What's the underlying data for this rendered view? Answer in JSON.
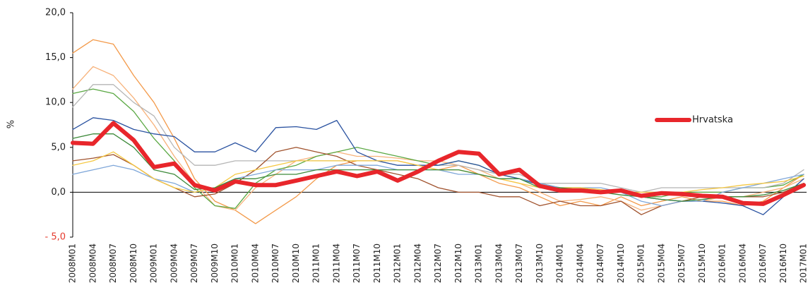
{
  "chart_data": {
    "type": "line",
    "y_label": "%",
    "categories": [
      "2008M01",
      "2008M04",
      "2008M07",
      "2008M10",
      "2009M01",
      "2009M04",
      "2009M07",
      "2009M10",
      "2010M01",
      "2010M04",
      "2010M07",
      "2010M10",
      "2011M01",
      "2011M04",
      "2011M07",
      "2011M10",
      "2012M01",
      "2012M04",
      "2012M07",
      "2012M10",
      "2013M01",
      "2013M04",
      "2013M07",
      "2013M10",
      "2014M01",
      "2014M04",
      "2014M07",
      "2014M10",
      "2015M01",
      "2015M04",
      "2015M07",
      "2015M10",
      "2016M01",
      "2016M04",
      "2016M07",
      "2016M10",
      "2017M01"
    ],
    "ylim": [
      -5,
      20
    ],
    "yticks": [
      {
        "value": -5,
        "label": "- 5,0"
      },
      {
        "value": 0,
        "label": "0,0"
      },
      {
        "value": 5,
        "label": "5,0"
      },
      {
        "value": 10,
        "label": "10,0"
      },
      {
        "value": 15,
        "label": "15,0"
      },
      {
        "value": 20,
        "label": "20,0"
      }
    ],
    "negative_tick_color": "#e53a2d",
    "legend_position": "right",
    "series": [
      {
        "color": "#f39a4a",
        "values": [
          15.5,
          17.0,
          16.5,
          13.0,
          10.0,
          6.0,
          1.5,
          -1.0,
          -2.0,
          -3.5,
          -2.0,
          -0.5,
          1.5,
          3.0,
          3.5,
          3.5,
          3.5,
          3.0,
          2.5,
          3.0,
          2.0,
          1.0,
          0.5,
          -0.5,
          -1.5,
          -1.0,
          -1.5,
          -0.5,
          -1.5,
          -1.0,
          -0.5,
          -1.0,
          -1.0,
          -1.5,
          -1.0,
          0.5,
          2.0
        ]
      },
      {
        "color": "#f7b27a",
        "values": [
          11.5,
          14.0,
          13.0,
          10.5,
          7.5,
          4.0,
          1.0,
          -1.5,
          -2.0,
          0.5,
          2.0,
          3.5,
          4.0,
          4.5,
          4.0,
          4.0,
          3.8,
          3.5,
          3.5,
          3.0,
          2.5,
          1.5,
          1.0,
          0.0,
          -1.0,
          -0.8,
          -0.5,
          -1.0,
          -2.0,
          -1.5,
          -1.0,
          -1.0,
          -0.5,
          -0.5,
          0.0,
          0.5,
          1.5
        ]
      },
      {
        "color": "#5aa843",
        "values": [
          11.0,
          11.5,
          11.0,
          9.0,
          6.0,
          3.5,
          0.5,
          -1.5,
          -1.8,
          1.0,
          2.5,
          3.0,
          4.0,
          4.5,
          5.0,
          4.5,
          4.0,
          3.5,
          3.0,
          3.5,
          3.0,
          2.0,
          1.5,
          1.0,
          0.5,
          0.5,
          0.0,
          0.0,
          -0.5,
          -0.5,
          0.0,
          0.0,
          0.0,
          0.5,
          0.5,
          0.8,
          2.0
        ]
      },
      {
        "color": "#b5b5b5",
        "values": [
          9.5,
          12.0,
          12.0,
          10.0,
          8.5,
          5.0,
          3.0,
          3.0,
          3.5,
          3.5,
          3.5,
          3.5,
          3.5,
          3.5,
          3.5,
          3.5,
          3.0,
          3.0,
          3.0,
          3.0,
          2.5,
          2.0,
          2.0,
          1.0,
          1.0,
          1.0,
          1.0,
          0.5,
          0.0,
          0.5,
          0.5,
          0.5,
          0.5,
          0.5,
          0.5,
          1.0,
          2.5
        ]
      },
      {
        "color": "#2a52a0",
        "values": [
          7.0,
          8.3,
          8.0,
          7.0,
          6.5,
          6.2,
          4.5,
          4.5,
          5.5,
          4.5,
          7.2,
          7.3,
          7.0,
          8.0,
          4.5,
          3.5,
          3.0,
          3.0,
          3.0,
          3.5,
          3.0,
          2.0,
          1.5,
          0.8,
          0.5,
          0.3,
          0.0,
          0.0,
          -0.5,
          -0.8,
          -1.0,
          -1.0,
          -1.2,
          -1.5,
          -2.5,
          -0.5,
          1.5
        ]
      },
      {
        "color": "#a0522d",
        "values": [
          3.5,
          3.8,
          4.2,
          3.0,
          1.5,
          0.5,
          -0.5,
          -0.2,
          1.0,
          2.5,
          4.5,
          5.0,
          4.5,
          4.0,
          3.0,
          2.5,
          2.0,
          1.5,
          0.5,
          0.0,
          0.0,
          -0.5,
          -0.5,
          -1.5,
          -1.0,
          -1.5,
          -1.5,
          -1.0,
          -2.5,
          -1.5,
          -1.0,
          -0.5,
          -0.5,
          -0.5,
          -0.5,
          0.0,
          1.0
        ]
      },
      {
        "color": "#7fa7d9",
        "values": [
          2.0,
          2.5,
          3.0,
          2.5,
          1.5,
          1.0,
          0.0,
          0.5,
          1.5,
          2.0,
          2.5,
          2.5,
          2.5,
          3.0,
          3.0,
          3.0,
          2.5,
          2.5,
          2.5,
          2.0,
          2.0,
          1.5,
          1.5,
          1.0,
          0.5,
          0.5,
          0.5,
          0.0,
          -1.0,
          -1.5,
          -1.0,
          -1.0,
          0.0,
          0.5,
          1.0,
          1.5,
          2.0
        ]
      },
      {
        "color": "#f5c842",
        "values": [
          3.0,
          3.5,
          4.5,
          3.0,
          1.5,
          0.5,
          0.0,
          0.5,
          2.0,
          2.5,
          3.0,
          3.5,
          3.5,
          3.5,
          3.5,
          3.5,
          3.5,
          3.0,
          2.5,
          2.5,
          2.0,
          1.5,
          1.0,
          0.5,
          0.5,
          0.5,
          0.3,
          0.0,
          0.0,
          0.0,
          0.0,
          0.3,
          0.5,
          0.8,
          1.0,
          1.2,
          1.8
        ]
      },
      {
        "color": "#3d8a3a",
        "values": [
          6.0,
          6.5,
          6.5,
          5.0,
          2.5,
          2.0,
          0.3,
          0.5,
          1.5,
          1.5,
          2.0,
          2.0,
          2.5,
          2.5,
          2.5,
          2.5,
          2.5,
          2.5,
          2.5,
          2.5,
          2.0,
          1.5,
          1.5,
          0.5,
          0.5,
          0.3,
          0.0,
          -0.3,
          -0.5,
          -0.8,
          -1.0,
          -0.8,
          -0.5,
          -0.5,
          -0.3,
          0.2,
          1.0
        ]
      },
      {
        "name": "Hrvatska",
        "color": "#e8262b",
        "values": [
          5.5,
          5.4,
          7.7,
          5.8,
          2.8,
          3.2,
          0.8,
          0.2,
          1.2,
          0.8,
          0.8,
          1.3,
          1.8,
          2.3,
          1.8,
          2.3,
          1.3,
          2.3,
          3.5,
          4.5,
          4.3,
          2.0,
          2.5,
          0.7,
          0.2,
          0.2,
          0.0,
          0.2,
          -0.4,
          -0.1,
          -0.2,
          -0.4,
          -0.5,
          -1.2,
          -1.3,
          -0.3,
          0.8
        ]
      }
    ]
  }
}
